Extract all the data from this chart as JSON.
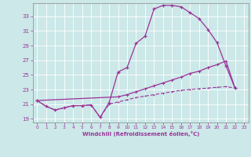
{
  "xlabel": "Windchill (Refroidissement éolien,°C)",
  "bg_color": "#cce8e8",
  "line_color": "#993399",
  "xlim_min": -0.5,
  "xlim_max": 23.5,
  "ylim_min": 18.5,
  "ylim_max": 34.8,
  "yticks": [
    19,
    21,
    23,
    25,
    27,
    29,
    31,
    33
  ],
  "xticks": [
    0,
    1,
    2,
    3,
    4,
    5,
    6,
    7,
    8,
    9,
    10,
    11,
    12,
    13,
    14,
    15,
    16,
    17,
    18,
    19,
    20,
    21,
    22,
    23
  ],
  "curve1_x": [
    0,
    1,
    2,
    3,
    4,
    5,
    6,
    7,
    8,
    9,
    10,
    11,
    12,
    13,
    14,
    15,
    16,
    17,
    18,
    19,
    20,
    21,
    22
  ],
  "curve1_y": [
    21.5,
    20.7,
    20.2,
    20.5,
    20.8,
    20.8,
    20.9,
    19.2,
    21.2,
    25.4,
    26.0,
    29.3,
    30.3,
    34.0,
    34.5,
    34.5,
    34.3,
    33.5,
    32.7,
    31.2,
    29.4,
    26.2,
    23.2
  ],
  "curve2_x": [
    0,
    9,
    10,
    11,
    12,
    13,
    14,
    15,
    16,
    17,
    18,
    19,
    20,
    21,
    22
  ],
  "curve2_y": [
    21.5,
    22.0,
    22.3,
    22.7,
    23.1,
    23.5,
    23.9,
    24.3,
    24.7,
    25.2,
    25.5,
    26.0,
    26.4,
    26.9,
    23.2
  ],
  "curve3_x": [
    0,
    1,
    2,
    3,
    4,
    5,
    6,
    7,
    8,
    9,
    10,
    11,
    12,
    13,
    14,
    15,
    16,
    17,
    18,
    19,
    20,
    21,
    22
  ],
  "curve3_y": [
    21.5,
    20.7,
    20.2,
    20.5,
    20.8,
    20.8,
    20.9,
    19.2,
    21.0,
    21.3,
    21.6,
    21.9,
    22.1,
    22.3,
    22.5,
    22.7,
    22.9,
    23.0,
    23.1,
    23.2,
    23.3,
    23.4,
    23.2
  ]
}
